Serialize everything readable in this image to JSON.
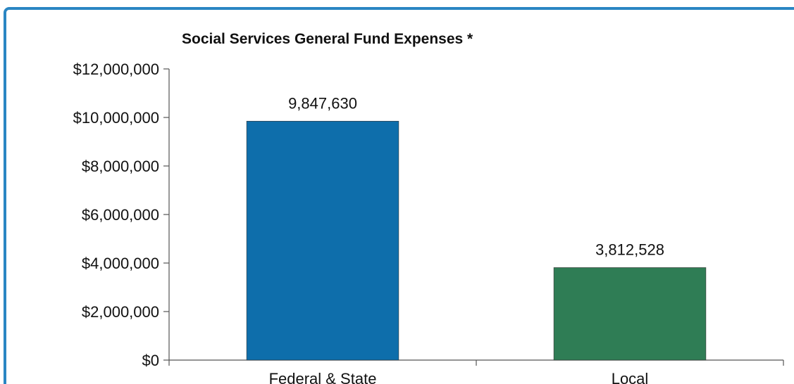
{
  "chart_data": {
    "type": "bar",
    "title": "Social Services General Fund Expenses *",
    "categories": [
      "Federal & State",
      "Local"
    ],
    "values": [
      9847630,
      3812528
    ],
    "data_labels": [
      "9,847,630",
      "3,812,528"
    ],
    "ylim": [
      0,
      12000000
    ],
    "yticks": [
      0,
      2000000,
      4000000,
      6000000,
      8000000,
      10000000,
      12000000
    ],
    "ytick_labels": [
      "$0",
      "$2,000,000",
      "$4,000,000",
      "$6,000,000",
      "$8,000,000",
      "$10,000,000",
      "$12,000,000"
    ],
    "colors": [
      "#0e6eab",
      "#2f7d55"
    ],
    "grid": false
  }
}
